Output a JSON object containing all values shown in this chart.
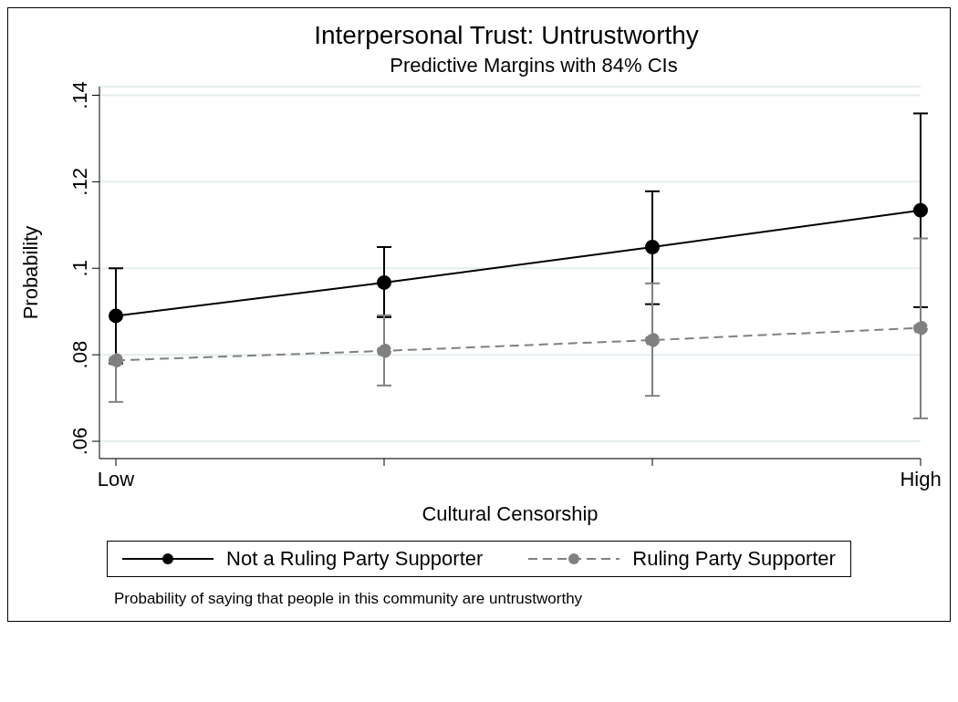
{
  "chart_data": {
    "type": "line",
    "title": "Interpersonal Trust: Untrustworthy",
    "subtitle": "Predictive Margins with 84% CIs",
    "xlabel": "Cultural Censorship",
    "ylabel": "Probability",
    "categories": [
      "Low",
      null,
      null,
      "High"
    ],
    "ylim": [
      0.056,
      0.142
    ],
    "yticks": [
      {
        "value": 0.06,
        "label": ".06"
      },
      {
        "value": 0.08,
        "label": ".08"
      },
      {
        "value": 0.1,
        "label": ".1"
      },
      {
        "value": 0.12,
        "label": ".12"
      },
      {
        "value": 0.14,
        "label": ".14"
      }
    ],
    "series": [
      {
        "name": "Not a Ruling Party Supporter",
        "color": "#000000",
        "line_style": "solid",
        "values": [
          0.089,
          0.0967,
          0.1049,
          0.1134
        ],
        "errors": [
          [
            0.078,
            0.1
          ],
          [
            0.0887,
            0.1049
          ],
          [
            0.0917,
            0.1178
          ],
          [
            0.091,
            0.1358
          ]
        ]
      },
      {
        "name": "Ruling Party Supporter",
        "color": "#808080",
        "line_style": "dashed",
        "values": [
          0.0787,
          0.0809,
          0.0834,
          0.0862
        ],
        "errors": [
          [
            0.0691,
            0.0787
          ],
          [
            0.0729,
            0.0891
          ],
          [
            0.0705,
            0.0965
          ],
          [
            0.0653,
            0.1069
          ]
        ]
      }
    ],
    "marker": "circle",
    "grid": "y",
    "legend": "bottom",
    "annotations": [
      "Probability of saying that people in this community are untrustworthy"
    ]
  }
}
